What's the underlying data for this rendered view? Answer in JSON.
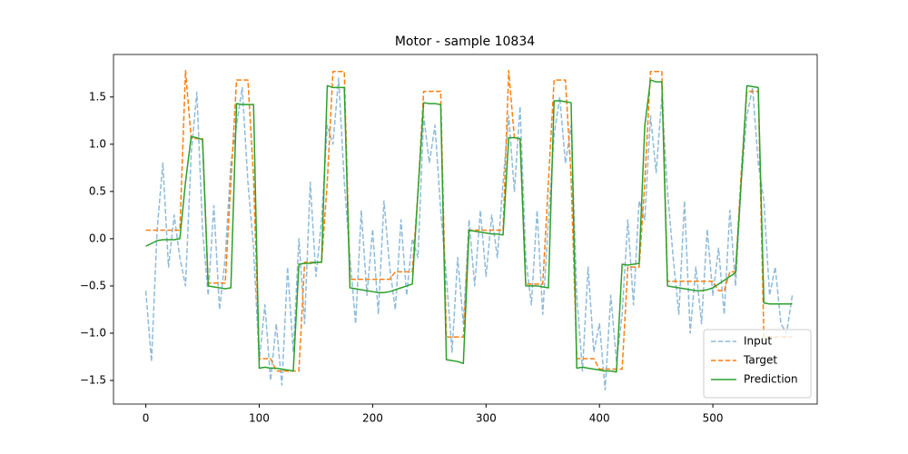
{
  "chart_data": {
    "type": "line",
    "title": "Motor - sample 10834",
    "x": [
      0,
      5,
      10,
      15,
      20,
      25,
      30,
      35,
      40,
      45,
      50,
      55,
      60,
      65,
      70,
      75,
      80,
      85,
      90,
      95,
      100,
      105,
      110,
      115,
      120,
      125,
      130,
      135,
      140,
      145,
      150,
      155,
      160,
      165,
      170,
      175,
      180,
      185,
      190,
      195,
      200,
      205,
      210,
      215,
      220,
      225,
      230,
      235,
      240,
      245,
      250,
      255,
      260,
      265,
      270,
      275,
      280,
      285,
      290,
      295,
      300,
      305,
      310,
      315,
      320,
      325,
      330,
      335,
      340,
      345,
      350,
      355,
      360,
      365,
      370,
      375,
      380,
      385,
      390,
      395,
      400,
      405,
      410,
      415,
      420,
      425,
      430,
      435,
      440,
      445,
      450,
      455,
      460,
      465,
      470,
      475,
      480,
      485,
      490,
      495,
      500,
      505,
      510,
      515,
      520,
      525,
      530,
      535,
      540,
      545,
      550,
      555,
      560,
      565,
      570
    ],
    "series": [
      {
        "name": "Input",
        "color": "#1f77b4",
        "dashed": true,
        "opacity": 0.5,
        "values": [
          -0.55,
          -1.3,
          0.1,
          0.8,
          -0.3,
          0.25,
          -0.2,
          -0.5,
          0.9,
          1.55,
          0.1,
          -0.6,
          0.35,
          -0.75,
          -0.2,
          0.8,
          1.2,
          1.6,
          0.6,
          -0.1,
          -1.3,
          -0.7,
          -1.5,
          -0.9,
          -1.55,
          -0.3,
          -1.2,
          0.0,
          -0.9,
          0.6,
          -0.4,
          0.2,
          1.2,
          1.0,
          1.7,
          0.6,
          -0.2,
          -0.9,
          0.3,
          -0.6,
          0.1,
          -0.8,
          0.4,
          -0.3,
          -0.75,
          0.2,
          -0.6,
          0.0,
          -0.2,
          1.3,
          0.8,
          1.2,
          0.3,
          -0.4,
          -1.2,
          -0.2,
          -0.9,
          0.2,
          -0.5,
          0.3,
          -0.4,
          0.25,
          -0.2,
          0.6,
          1.3,
          0.5,
          1.4,
          -0.2,
          -0.7,
          0.3,
          -0.8,
          0.2,
          1.1,
          1.5,
          0.8,
          1.2,
          -0.6,
          -1.4,
          -0.3,
          -1.2,
          -0.9,
          -1.6,
          -0.6,
          -1.3,
          -0.8,
          0.2,
          -0.7,
          0.4,
          0.2,
          1.3,
          0.7,
          1.5,
          0.5,
          -0.2,
          -0.8,
          0.4,
          -1.0,
          -0.3,
          -0.9,
          0.1,
          -0.6,
          -0.1,
          -0.8,
          0.3,
          -0.5,
          0.6,
          1.3,
          1.6,
          0.8,
          0.4,
          -0.6,
          -0.3,
          -0.9,
          -1.0,
          -0.6
        ]
      },
      {
        "name": "Target",
        "color": "#ff7f0e",
        "dashed": true,
        "opacity": 1,
        "values": [
          0.09,
          0.09,
          0.09,
          0.09,
          0.09,
          0.09,
          0.09,
          1.78,
          1.06,
          1.06,
          1.06,
          -0.47,
          -0.47,
          -0.47,
          -0.47,
          0.6,
          1.68,
          1.68,
          1.68,
          0.65,
          -1.27,
          -1.27,
          -1.27,
          -1.4,
          -1.4,
          -1.4,
          -1.4,
          -1.4,
          -0.25,
          -0.25,
          -0.25,
          -0.25,
          0.6,
          1.77,
          1.77,
          1.77,
          -0.43,
          -0.43,
          -0.43,
          -0.43,
          -0.43,
          -0.43,
          -0.43,
          -0.43,
          -0.35,
          -0.35,
          -0.35,
          -0.35,
          0.5,
          1.56,
          1.56,
          1.56,
          1.56,
          -1.04,
          -1.04,
          -1.04,
          -1.04,
          0.09,
          0.09,
          0.09,
          0.09,
          0.09,
          0.09,
          0.09,
          1.78,
          1.06,
          1.06,
          -0.48,
          -0.48,
          -0.48,
          -0.48,
          0.6,
          1.68,
          1.68,
          1.68,
          0.65,
          -1.27,
          -1.27,
          -1.27,
          -1.27,
          -1.38,
          -1.38,
          -1.38,
          -1.38,
          -1.38,
          -0.3,
          -0.3,
          -0.3,
          0.6,
          1.77,
          1.77,
          1.77,
          -0.45,
          -0.45,
          -0.45,
          -0.45,
          -0.45,
          -0.45,
          -0.45,
          -0.45,
          -0.45,
          -0.55,
          -0.55,
          -0.35,
          -0.35,
          0.7,
          1.56,
          1.56,
          1.56,
          -1.04,
          -1.04,
          -1.04,
          -1.04,
          -1.04,
          -1.04
        ]
      },
      {
        "name": "Prediction",
        "color": "#2ca02c",
        "dashed": false,
        "opacity": 1,
        "values": [
          -0.08,
          -0.05,
          -0.02,
          -0.01,
          -0.01,
          -0.01,
          0.0,
          0.6,
          1.08,
          1.07,
          1.05,
          -0.5,
          -0.51,
          -0.52,
          -0.53,
          -0.52,
          1.43,
          1.42,
          1.42,
          1.42,
          -1.37,
          -1.36,
          -1.37,
          -1.37,
          -1.38,
          -1.39,
          -1.4,
          -0.27,
          -0.26,
          -0.26,
          -0.25,
          -0.25,
          1.62,
          1.6,
          1.6,
          1.6,
          -0.52,
          -0.53,
          -0.54,
          -0.55,
          -0.56,
          -0.57,
          -0.57,
          -0.56,
          -0.54,
          -0.52,
          -0.5,
          -0.48,
          0.5,
          1.44,
          1.43,
          1.43,
          1.42,
          -1.28,
          -1.29,
          -1.3,
          -1.32,
          0.09,
          0.08,
          0.07,
          0.06,
          0.05,
          0.05,
          0.04,
          1.07,
          1.07,
          1.06,
          -0.5,
          -0.5,
          -0.5,
          -0.51,
          -0.52,
          1.46,
          1.46,
          1.45,
          1.44,
          -1.37,
          -1.36,
          -1.37,
          -1.38,
          -1.39,
          -1.4,
          -1.4,
          -1.41,
          -0.27,
          -0.28,
          -0.27,
          -0.26,
          1.2,
          1.68,
          1.66,
          1.66,
          -0.5,
          -0.51,
          -0.52,
          -0.53,
          -0.54,
          -0.55,
          -0.55,
          -0.54,
          -0.52,
          -0.48,
          -0.44,
          -0.4,
          -0.36,
          0.6,
          1.62,
          1.61,
          1.6,
          -0.68,
          -0.69,
          -0.69,
          -0.69,
          -0.69,
          -0.69
        ]
      }
    ],
    "xlim": [
      -28.5,
      592
    ],
    "ylim": [
      -1.75,
      1.95
    ],
    "xticks": [
      0,
      100,
      200,
      300,
      400,
      500
    ],
    "yticks": [
      {
        "value": -1.5,
        "label": "−1.5"
      },
      {
        "value": -1.0,
        "label": "−1.0"
      },
      {
        "value": -0.5,
        "label": "−0.5"
      },
      {
        "value": 0.0,
        "label": "0.0"
      },
      0.5,
      {
        "value": 1.0,
        "label": "1.0"
      },
      1.5
    ],
    "legend": "lower right"
  }
}
